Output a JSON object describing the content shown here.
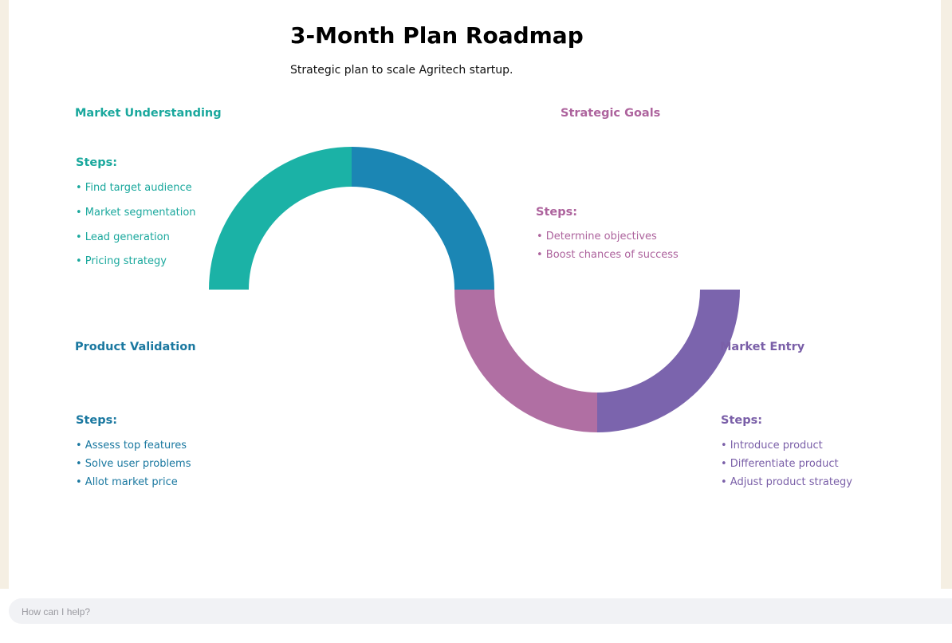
{
  "diagram": {
    "title": "3-Month Plan Roadmap",
    "subtitle": "Strategic plan to scale Agritech startup.",
    "sections": {
      "market_understanding": {
        "title": "Market Understanding",
        "steps_label": "Steps:",
        "color": "#1aa89d",
        "steps": [
          "• Find target audience",
          "• Market segmentation",
          "• Lead generation",
          "• Pricing strategy"
        ]
      },
      "product_validation": {
        "title": "Product Validation",
        "steps_label": "Steps:",
        "color": "#1a78a0",
        "steps": [
          "• Assess top features",
          "• Solve user problems",
          "• Allot market price"
        ]
      },
      "strategic_goals": {
        "title": "Strategic Goals",
        "steps_label": "Steps:",
        "color": "#ad639d",
        "steps": [
          "• Determine objectives",
          "• Boost chances of success"
        ]
      },
      "market_entry": {
        "title": "Market Entry",
        "steps_label": "Steps:",
        "color": "#7a5fa8",
        "steps": [
          "• Introduce product",
          "• Differentiate product",
          "• Adjust product strategy"
        ]
      }
    },
    "arc_colors": {
      "segment_1": "#1bb2a6",
      "segment_2": "#1b86b4",
      "segment_3": "#b06fa3",
      "segment_4": "#7b64ad"
    }
  },
  "chat": {
    "placeholder": "How can I help?"
  }
}
